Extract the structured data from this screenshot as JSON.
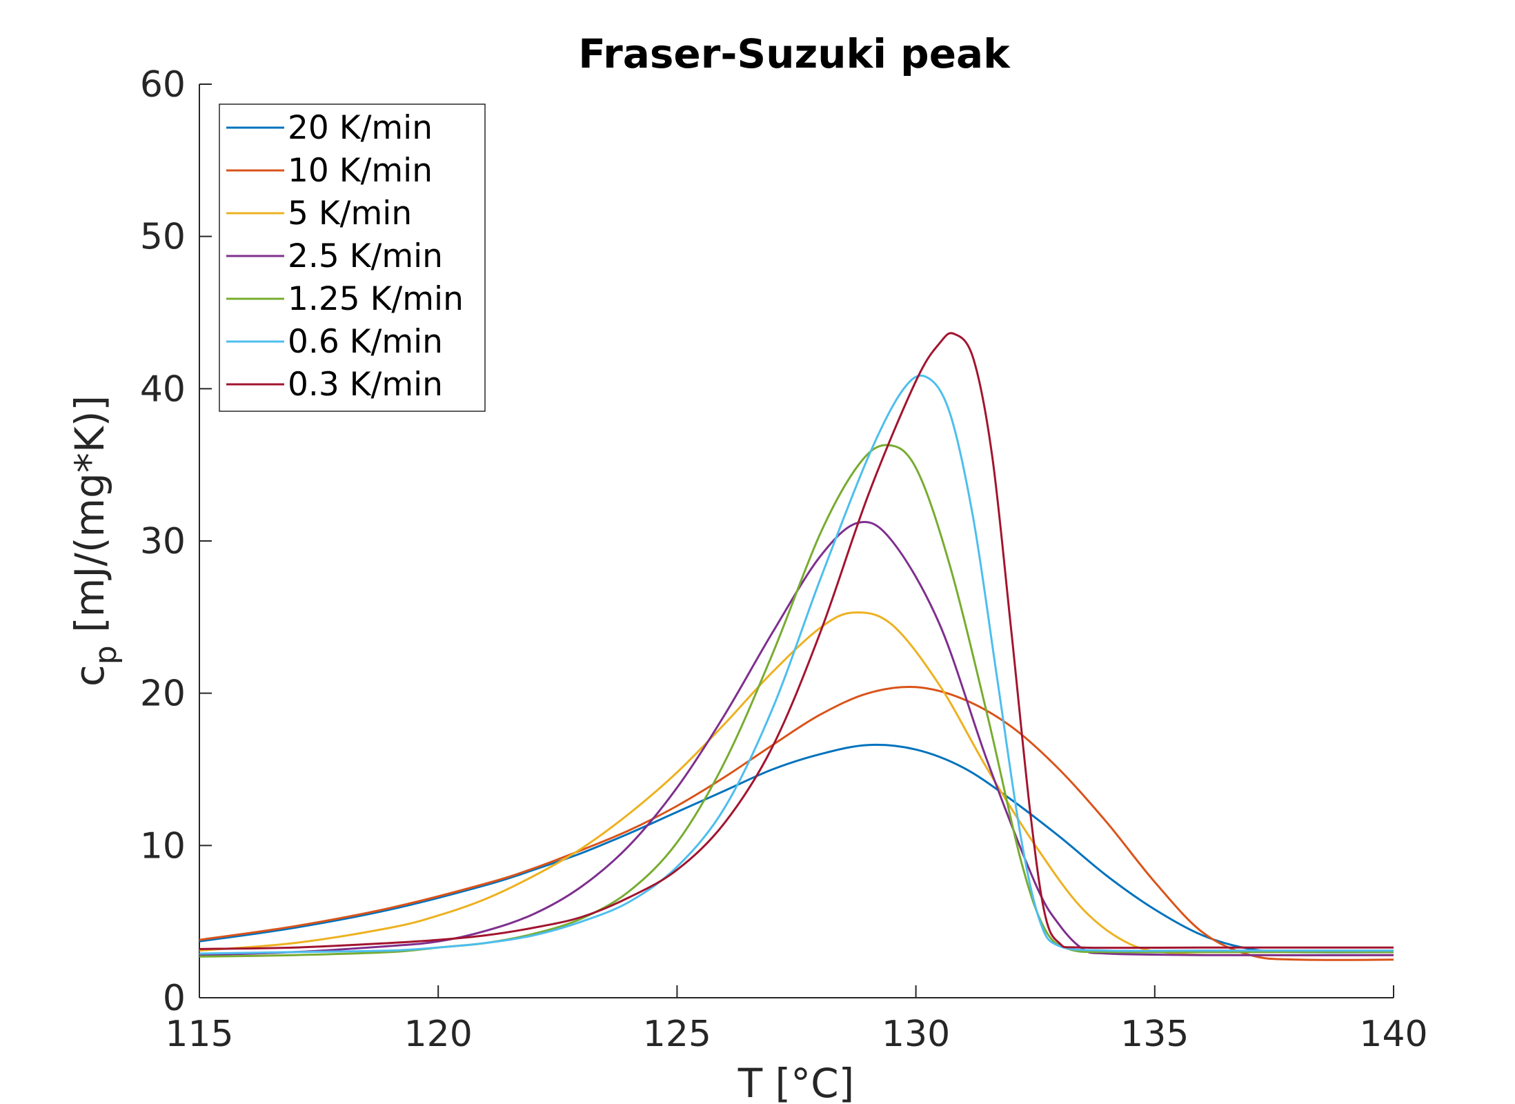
{
  "chart_data": {
    "type": "line",
    "title": "Fraser-Suzuki peak",
    "xlabel": "T [°C]",
    "ylabel_main": "c",
    "ylabel_sub": "p",
    "ylabel_rest": " [mJ/(mg*K)]",
    "xlim": [
      115,
      140
    ],
    "ylim": [
      0,
      60
    ],
    "xticks": [
      115,
      120,
      125,
      130,
      135,
      140
    ],
    "yticks": [
      0,
      10,
      20,
      30,
      40,
      50,
      60
    ],
    "grid": false,
    "legend_position": "top-left",
    "series": [
      {
        "name": "20 K/min",
        "color": "#0072BD",
        "points": [
          [
            115,
            3.7
          ],
          [
            117,
            4.6
          ],
          [
            119,
            5.8
          ],
          [
            121,
            7.4
          ],
          [
            122,
            8.4
          ],
          [
            123,
            9.5
          ],
          [
            124,
            10.8
          ],
          [
            125,
            12.2
          ],
          [
            126,
            13.6
          ],
          [
            127,
            15.0
          ],
          [
            128,
            16.0
          ],
          [
            129,
            16.6
          ],
          [
            130,
            16.3
          ],
          [
            131,
            15.1
          ],
          [
            132,
            13.0
          ],
          [
            133,
            10.6
          ],
          [
            134,
            8.0
          ],
          [
            135,
            5.8
          ],
          [
            136,
            4.1
          ],
          [
            137,
            3.2
          ],
          [
            138,
            3.0
          ],
          [
            140,
            3.0
          ]
        ]
      },
      {
        "name": "10 K/min",
        "color": "#D95319",
        "points": [
          [
            115,
            3.8
          ],
          [
            117,
            4.7
          ],
          [
            119,
            5.9
          ],
          [
            121,
            7.5
          ],
          [
            122,
            8.5
          ],
          [
            123,
            9.7
          ],
          [
            124,
            11.0
          ],
          [
            125,
            12.6
          ],
          [
            126,
            14.5
          ],
          [
            127,
            16.6
          ],
          [
            128,
            18.6
          ],
          [
            129,
            20.0
          ],
          [
            130,
            20.4
          ],
          [
            131,
            19.6
          ],
          [
            132,
            17.8
          ],
          [
            133,
            15.0
          ],
          [
            134,
            11.5
          ],
          [
            135,
            7.6
          ],
          [
            136,
            4.3
          ],
          [
            137,
            2.8
          ],
          [
            138,
            2.5
          ],
          [
            140,
            2.5
          ]
        ]
      },
      {
        "name": "5 K/min",
        "color": "#EDB120",
        "points": [
          [
            115,
            3.1
          ],
          [
            117,
            3.6
          ],
          [
            119,
            4.6
          ],
          [
            120,
            5.4
          ],
          [
            121,
            6.5
          ],
          [
            122,
            8.0
          ],
          [
            123,
            9.8
          ],
          [
            124,
            12.1
          ],
          [
            125,
            14.8
          ],
          [
            126,
            18.0
          ],
          [
            127,
            21.4
          ],
          [
            128,
            24.3
          ],
          [
            128.7,
            25.3
          ],
          [
            129.5,
            24.5
          ],
          [
            130.5,
            20.5
          ],
          [
            131.5,
            15.0
          ],
          [
            132.5,
            10.0
          ],
          [
            133.5,
            5.8
          ],
          [
            134.5,
            3.5
          ],
          [
            135.5,
            2.9
          ],
          [
            137,
            2.8
          ],
          [
            140,
            2.8
          ]
        ]
      },
      {
        "name": "2.5 K/min",
        "color": "#7E2F8E",
        "points": [
          [
            115,
            2.8
          ],
          [
            117,
            3.0
          ],
          [
            119,
            3.4
          ],
          [
            120,
            3.7
          ],
          [
            121,
            4.4
          ],
          [
            122,
            5.5
          ],
          [
            123,
            7.3
          ],
          [
            124,
            10.0
          ],
          [
            125,
            13.8
          ],
          [
            126,
            18.6
          ],
          [
            127,
            24.0
          ],
          [
            128,
            29.0
          ],
          [
            128.8,
            31.2
          ],
          [
            129.5,
            30.0
          ],
          [
            130.5,
            24.5
          ],
          [
            131.5,
            15.5
          ],
          [
            132.5,
            7.5
          ],
          [
            133,
            4.8
          ],
          [
            133.5,
            3.2
          ],
          [
            134,
            2.9
          ],
          [
            136,
            2.8
          ],
          [
            140,
            2.8
          ]
        ]
      },
      {
        "name": "1.25 K/min",
        "color": "#77AC30",
        "points": [
          [
            115,
            2.7
          ],
          [
            117,
            2.8
          ],
          [
            119,
            3.0
          ],
          [
            120,
            3.3
          ],
          [
            121,
            3.6
          ],
          [
            122,
            4.2
          ],
          [
            123,
            5.2
          ],
          [
            124,
            7.0
          ],
          [
            125,
            10.2
          ],
          [
            126,
            15.5
          ],
          [
            127,
            22.6
          ],
          [
            128,
            30.5
          ],
          [
            128.8,
            35.0
          ],
          [
            129.4,
            36.3
          ],
          [
            130,
            34.8
          ],
          [
            130.7,
            28.5
          ],
          [
            131.5,
            18.5
          ],
          [
            132.2,
            9.0
          ],
          [
            132.7,
            4.5
          ],
          [
            133.2,
            3.2
          ],
          [
            134,
            3.0
          ],
          [
            136,
            3.0
          ],
          [
            140,
            3.0
          ]
        ]
      },
      {
        "name": "0.6 K/min",
        "color": "#4DBEEE",
        "points": [
          [
            115,
            2.9
          ],
          [
            117,
            3.0
          ],
          [
            119,
            3.1
          ],
          [
            120,
            3.3
          ],
          [
            121,
            3.6
          ],
          [
            122,
            4.1
          ],
          [
            123,
            5.0
          ],
          [
            124,
            6.3
          ],
          [
            125,
            8.6
          ],
          [
            126,
            12.5
          ],
          [
            127,
            19.0
          ],
          [
            128,
            27.5
          ],
          [
            129,
            35.5
          ],
          [
            129.7,
            39.8
          ],
          [
            130.2,
            40.8
          ],
          [
            130.7,
            38.5
          ],
          [
            131.2,
            31.5
          ],
          [
            131.7,
            21.0
          ],
          [
            132.2,
            10.5
          ],
          [
            132.6,
            5.0
          ],
          [
            133,
            3.4
          ],
          [
            134,
            3.1
          ],
          [
            136,
            3.1
          ],
          [
            140,
            3.1
          ]
        ]
      },
      {
        "name": "0.3 K/min",
        "color": "#A2142F",
        "points": [
          [
            115,
            3.2
          ],
          [
            117,
            3.3
          ],
          [
            119,
            3.6
          ],
          [
            120,
            3.8
          ],
          [
            121,
            4.1
          ],
          [
            122,
            4.6
          ],
          [
            123,
            5.3
          ],
          [
            124,
            6.6
          ],
          [
            125,
            8.4
          ],
          [
            126,
            11.5
          ],
          [
            127,
            16.5
          ],
          [
            128,
            24.0
          ],
          [
            129,
            33.0
          ],
          [
            130,
            40.5
          ],
          [
            130.5,
            43.0
          ],
          [
            130.8,
            43.6
          ],
          [
            131.2,
            42.0
          ],
          [
            131.6,
            35.5
          ],
          [
            132,
            24.0
          ],
          [
            132.4,
            12.0
          ],
          [
            132.7,
            5.5
          ],
          [
            133,
            3.6
          ],
          [
            133.5,
            3.3
          ],
          [
            136,
            3.3
          ],
          [
            140,
            3.3
          ]
        ]
      }
    ]
  }
}
